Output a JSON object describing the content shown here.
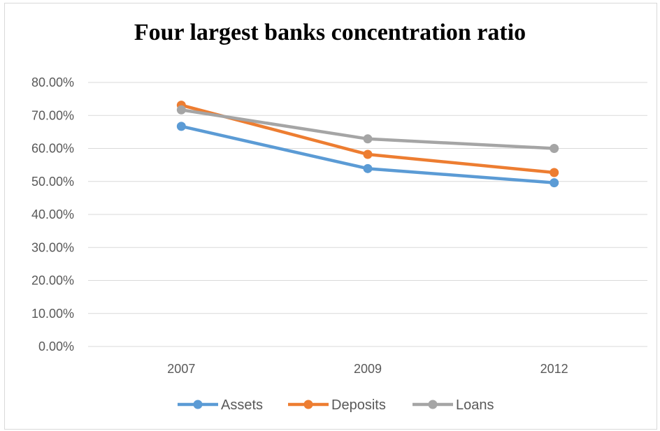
{
  "chart_data": {
    "type": "line",
    "title": "Four largest banks concentration ratio",
    "categories": [
      "2007",
      "2009",
      "2012"
    ],
    "ylim": [
      0,
      0.8
    ],
    "yticks": [
      "0.00%",
      "10.00%",
      "20.00%",
      "30.00%",
      "40.00%",
      "50.00%",
      "60.00%",
      "70.00%",
      "80.00%"
    ],
    "grid": true,
    "legend_position": "bottom",
    "series": [
      {
        "name": "Assets",
        "color": "#5b9bd5",
        "values": [
          0.667,
          0.539,
          0.496
        ]
      },
      {
        "name": "Deposits",
        "color": "#ed7d31",
        "values": [
          0.731,
          0.582,
          0.527
        ]
      },
      {
        "name": "Loans",
        "color": "#a5a5a5",
        "values": [
          0.717,
          0.629,
          0.6
        ]
      }
    ]
  }
}
